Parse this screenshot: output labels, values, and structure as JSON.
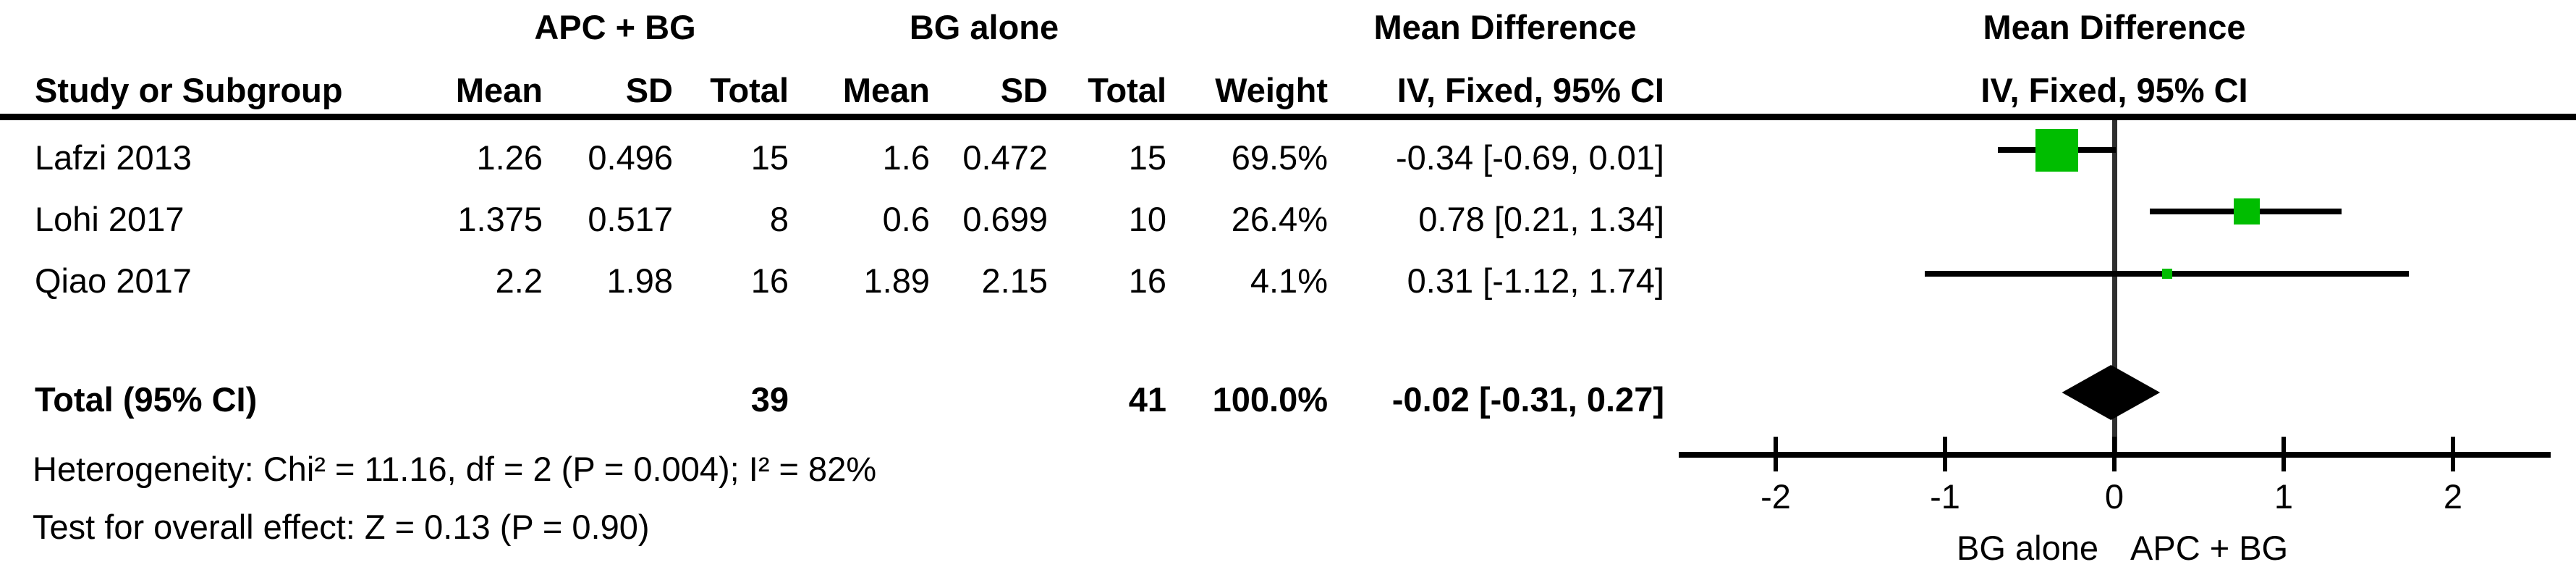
{
  "header": {
    "group1": "APC + BG",
    "group2": "BG alone",
    "effect_col_title": "Mean Difference",
    "effect_col_sub": "IV, Fixed, 95% CI",
    "plot_title": "Mean Difference",
    "plot_sub": "IV, Fixed, 95% CI",
    "col_study": "Study or Subgroup",
    "col_mean": "Mean",
    "col_sd": "SD",
    "col_total": "Total",
    "col_weight": "Weight"
  },
  "rows": [
    {
      "study": "Lafzi 2013",
      "mean1": "1.26",
      "sd1": "0.496",
      "total1": "15",
      "mean2": "1.6",
      "sd2": "0.472",
      "total2": "15",
      "weight": "69.5%",
      "ci": "-0.34 [-0.69, 0.01]"
    },
    {
      "study": "Lohi 2017",
      "mean1": "1.375",
      "sd1": "0.517",
      "total1": "8",
      "mean2": "0.6",
      "sd2": "0.699",
      "total2": "10",
      "weight": "26.4%",
      "ci": "0.78 [0.21, 1.34]"
    },
    {
      "study": "Qiao 2017",
      "mean1": "2.2",
      "sd1": "1.98",
      "total1": "16",
      "mean2": "1.89",
      "sd2": "2.15",
      "total2": "16",
      "weight": "4.1%",
      "ci": "0.31 [-1.12, 1.74]"
    }
  ],
  "total_row": {
    "label": "Total (95% CI)",
    "total1": "39",
    "total2": "41",
    "weight": "100.0%",
    "ci": "-0.02 [-0.31, 0.27]"
  },
  "footnotes": {
    "heterogeneity": "Heterogeneity: Chi² = 11.16, df = 2 (P = 0.004); I² = 82%",
    "overall": "Test for overall effect: Z = 0.13 (P = 0.90)"
  },
  "chart_data": {
    "type": "forest",
    "effect_measure": "Mean Difference, IV Fixed 95% CI",
    "x_axis": {
      "ticks": [
        -2,
        -1,
        0,
        1,
        2
      ],
      "min": -2.57,
      "max": 2.57,
      "left_label": "BG alone",
      "right_label": "APC + BG"
    },
    "studies": [
      {
        "name": "Lafzi 2013",
        "mean1": 1.26,
        "sd1": 0.496,
        "n1": 15,
        "mean2": 1.6,
        "sd2": 0.472,
        "n2": 15,
        "weight_pct": 69.5,
        "md": -0.34,
        "ci_low": -0.69,
        "ci_high": 0.01
      },
      {
        "name": "Lohi 2017",
        "mean1": 1.375,
        "sd1": 0.517,
        "n1": 8,
        "mean2": 0.6,
        "sd2": 0.699,
        "n2": 10,
        "weight_pct": 26.4,
        "md": 0.78,
        "ci_low": 0.21,
        "ci_high": 1.34
      },
      {
        "name": "Qiao 2017",
        "mean1": 2.2,
        "sd1": 1.98,
        "n1": 16,
        "mean2": 1.89,
        "sd2": 2.15,
        "n2": 16,
        "weight_pct": 4.1,
        "md": 0.31,
        "ci_low": -1.12,
        "ci_high": 1.74
      }
    ],
    "total": {
      "n1": 39,
      "n2": 41,
      "weight_pct": 100.0,
      "md": -0.02,
      "ci_low": -0.31,
      "ci_high": 0.27
    },
    "marker_color": "#00bd00",
    "diamond_color": "#000000"
  }
}
